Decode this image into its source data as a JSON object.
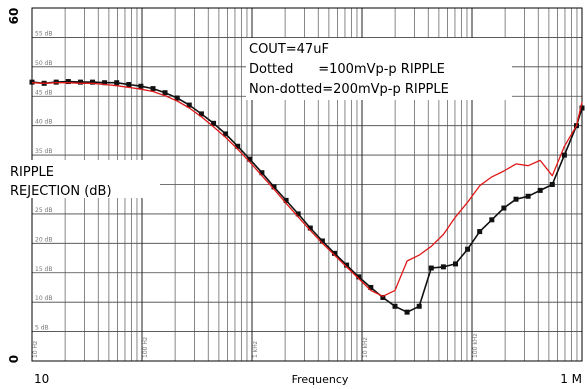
{
  "chart_data": {
    "type": "line",
    "xlabel": "Frequency",
    "ylabel": "RIPPLE\nREJECTION (dB)",
    "x_scale": "log",
    "xlim": [
      10,
      1000000
    ],
    "ylim": [
      0,
      60
    ],
    "x_tick_labels": [
      {
        "x": 10,
        "label": "10"
      },
      {
        "x": 1000000,
        "label": "1 M"
      }
    ],
    "y_tick_labels": [
      {
        "y": 60,
        "label": "60"
      },
      {
        "y": 0,
        "label": "0"
      }
    ],
    "minor_x_labels": [
      {
        "x": 10,
        "label": "10 Hz"
      },
      {
        "x": 100,
        "label": "100 Hz"
      },
      {
        "x": 1000,
        "label": "1 kHz"
      },
      {
        "x": 10000,
        "label": "10 kHz"
      },
      {
        "x": 100000,
        "label": "100 kHz"
      }
    ],
    "minor_y_labels": [
      {
        "y": 55,
        "label": "55 dB"
      },
      {
        "y": 50,
        "label": "50 dB"
      },
      {
        "y": 45,
        "label": "45 dB"
      },
      {
        "y": 40,
        "label": "40 dB"
      },
      {
        "y": 35,
        "label": "35 dB"
      },
      {
        "y": 25,
        "label": "25 dB"
      },
      {
        "y": 20,
        "label": "20 dB"
      },
      {
        "y": 15,
        "label": "15 dB"
      },
      {
        "y": 10,
        "label": "10 dB"
      },
      {
        "y": 5,
        "label": "5 dB"
      }
    ],
    "annotations": [
      "COUT=47uF",
      "Dotted      =100mVp-p RIPPLE",
      "Non-dotted=200mVp-p RIPPLE"
    ],
    "grid": true,
    "series": [
      {
        "name": "Dotted =100mVp-p RIPPLE",
        "color": "#111111",
        "marker": "square",
        "x": [
          10,
          12.9,
          16.6,
          21.4,
          27.6,
          35.5,
          45.7,
          58.9,
          75.9,
          97.7,
          125.9,
          162,
          209,
          269,
          347,
          447,
          575,
          741,
          955,
          1230,
          1585,
          2042,
          2630,
          3388,
          4365,
          5623,
          7244,
          9333,
          12023,
          15488,
          19953,
          25704,
          33113,
          42658,
          54954,
          70795,
          91201,
          117490,
          151360,
          194980,
          251190,
          323590,
          416870,
          537030,
          691830,
          891250,
          1000000
        ],
        "y": [
          47.4,
          47.2,
          47.4,
          47.5,
          47.4,
          47.4,
          47.3,
          47.3,
          47.0,
          46.7,
          46.3,
          45.6,
          44.7,
          43.5,
          42.0,
          40.4,
          38.6,
          36.5,
          34.3,
          32.0,
          29.6,
          27.3,
          25.0,
          22.6,
          20.4,
          18.3,
          16.3,
          14.3,
          12.5,
          10.8,
          9.3,
          8.3,
          9.3,
          15.8,
          16.0,
          16.5,
          19.0,
          22.0,
          24.0,
          26.0,
          27.5,
          28.0,
          29.0,
          30.0,
          35.0,
          40.0,
          43.0
        ]
      },
      {
        "name": "Non-dotted=200mVp-p RIPPLE",
        "color": "#e01818",
        "marker": "none",
        "x": [
          10,
          12.9,
          16.6,
          21.4,
          27.6,
          35.5,
          45.7,
          58.9,
          75.9,
          97.7,
          125.9,
          162,
          209,
          269,
          347,
          447,
          575,
          741,
          955,
          1230,
          1585,
          2042,
          2630,
          3388,
          4365,
          5623,
          7244,
          9333,
          12023,
          15488,
          19953,
          25704,
          33113,
          42658,
          54954,
          70795,
          91201,
          117490,
          151360,
          194980,
          251190,
          323590,
          416870,
          537030,
          691830,
          891250,
          1000000
        ],
        "y": [
          47.3,
          47.2,
          47.3,
          47.3,
          47.2,
          47.2,
          47.0,
          46.8,
          46.5,
          46.2,
          45.8,
          45.1,
          44.2,
          43.0,
          41.5,
          39.8,
          38.0,
          36.0,
          33.8,
          31.5,
          29.2,
          26.8,
          24.5,
          22.2,
          20.0,
          18.0,
          16.0,
          14.0,
          12.0,
          11.0,
          12.0,
          17.0,
          18.0,
          19.5,
          21.5,
          24.5,
          27.0,
          29.8,
          31.3,
          32.3,
          33.5,
          33.2,
          34.1,
          31.5,
          36.5,
          40.0,
          44.0
        ]
      }
    ]
  }
}
